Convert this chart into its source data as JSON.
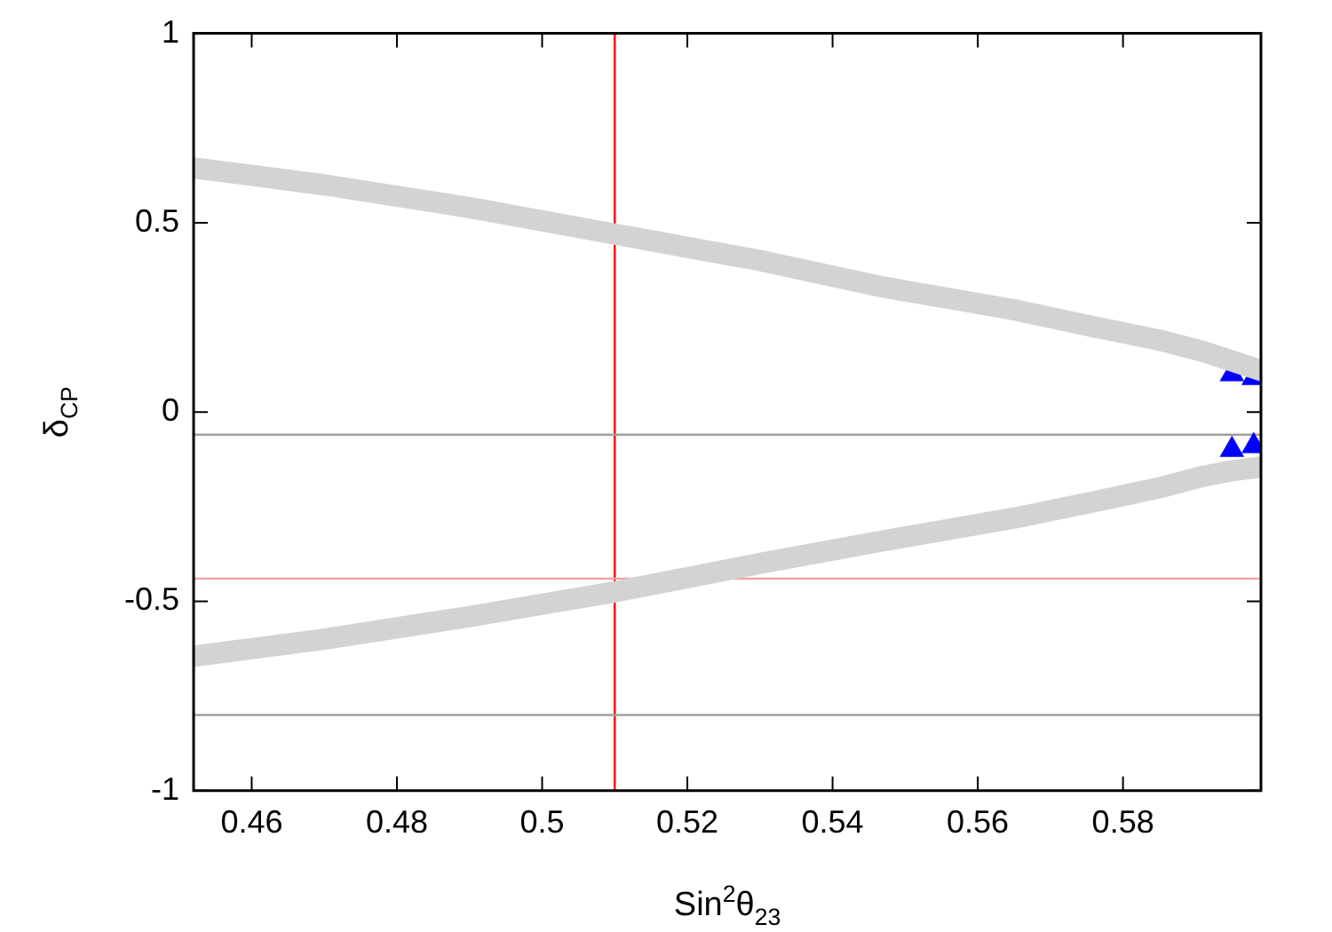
{
  "chart_data": {
    "type": "line",
    "xlabel": "Sin$^{2}$θ$_{23}$",
    "ylabel": "δ$_{CP}$",
    "xlim": [
      0.452,
      0.599
    ],
    "xticks": [
      0.46,
      0.48,
      0.5,
      0.52,
      0.54,
      0.56,
      0.58
    ],
    "ylim": [
      -1,
      1
    ],
    "yticks": [
      -1,
      -0.5,
      0,
      0.5,
      1
    ],
    "grid": false,
    "legend": false,
    "series": [
      {
        "color": "#d3d3d3",
        "x": [
          0.452,
          0.47,
          0.49,
          0.51,
          0.53,
          0.547,
          0.565,
          0.576,
          0.585,
          0.591,
          0.595,
          0.599
        ],
        "values": [
          0.645,
          0.6,
          0.54,
          0.47,
          0.4,
          0.33,
          0.27,
          0.225,
          0.19,
          0.16,
          0.135,
          0.11
        ]
      },
      {
        "color": "#d3d3d3",
        "x": [
          0.452,
          0.47,
          0.49,
          0.51,
          0.53,
          0.547,
          0.565,
          0.576,
          0.585,
          0.591,
          0.595,
          0.599
        ],
        "values": [
          -0.645,
          -0.6,
          -0.54,
          -0.475,
          -0.4,
          -0.34,
          -0.28,
          -0.237,
          -0.2,
          -0.17,
          -0.155,
          -0.145
        ]
      },
      {
        "type": "scatter",
        "color": "#0000ff",
        "marker": "triangle",
        "x": [
          0.595,
          0.598,
          0.595,
          0.598
        ],
        "values": [
          0.1,
          0.09,
          -0.1,
          -0.09
        ]
      }
    ],
    "ref_lines": [
      {
        "axis": "x",
        "value": 0.51,
        "color": "#ff0000"
      },
      {
        "axis": "y",
        "value": -0.06,
        "color": "#a0a0a0"
      },
      {
        "axis": "y",
        "value": -0.44,
        "color": "#f4a0a0"
      },
      {
        "axis": "y",
        "value": -0.8,
        "color": "#a0a0a0"
      }
    ]
  }
}
